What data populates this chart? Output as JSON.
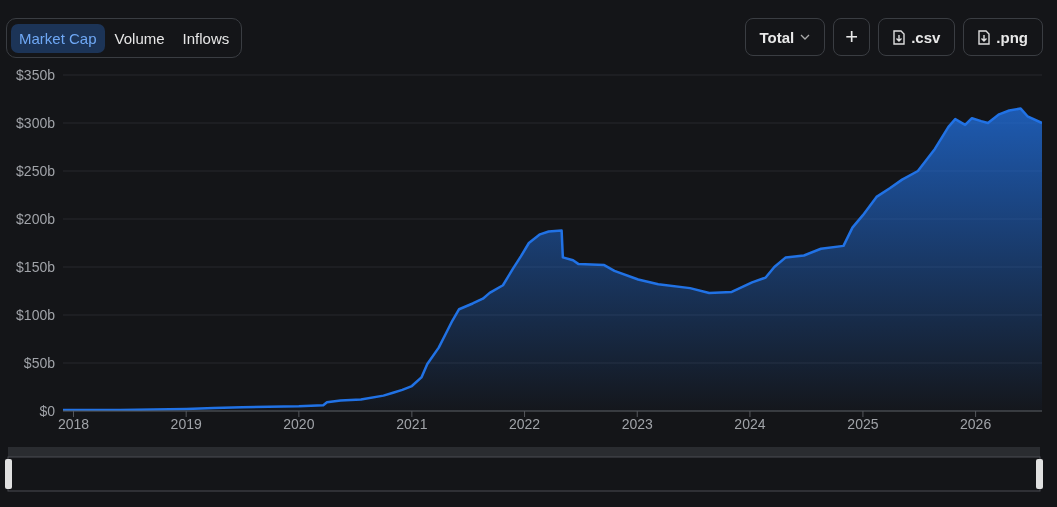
{
  "chart_data": {
    "type": "area",
    "annotations": [
      "Market Cap",
      "Volume",
      "Inflows",
      "Total",
      "+",
      ".csv",
      ".png"
    ],
    "x": [
      "2017-11-28",
      "2018-06-01",
      "2019-01-01",
      "2019-04-01",
      "2019-07-01",
      "2020-01-01",
      "2020-03-20",
      "2020-04-01",
      "2020-05-15",
      "2020-07-20",
      "2020-10-01",
      "2020-11-01",
      "2020-12-01",
      "2021-01-01",
      "2021-02-01",
      "2021-02-20",
      "2021-03-29",
      "2021-04-20",
      "2021-05-12",
      "2021-06-03",
      "2021-07-17",
      "2021-08-19",
      "2021-09-10",
      "2021-10-23",
      "2021-11-24",
      "2021-12-20",
      "2022-01-15",
      "2022-02-20",
      "2022-03-20",
      "2022-05-01",
      "2022-05-05",
      "2022-06-07",
      "2022-06-25",
      "2022-09-16",
      "2022-10-19",
      "2023-01-04",
      "2023-03-10",
      "2023-06-21",
      "2023-08-22",
      "2023-11-03",
      "2024-01-08",
      "2024-02-21",
      "2024-03-20",
      "2024-04-26",
      "2024-06-24",
      "2024-08-18",
      "2024-10-30",
      "2024-11-28",
      "2025-01-01",
      "2025-02-14",
      "2025-03-29",
      "2025-05-08",
      "2025-06-28",
      "2025-08-22",
      "2025-10-05",
      "2025-10-27",
      "2025-11-28",
      "2025-12-20",
      "2026-01-19",
      "2026-02-10",
      "2026-03-18",
      "2026-04-20",
      "2026-05-27",
      "2026-06-18",
      "2026-08-04"
    ],
    "series": [
      {
        "color": "#2172e5",
        "values": [
          1,
          1,
          2,
          3,
          4,
          5,
          6,
          9,
          11,
          12,
          16,
          19,
          22,
          26,
          35,
          49,
          66,
          80,
          94,
          106,
          112,
          117,
          123,
          131,
          148,
          161,
          175,
          184,
          187,
          188,
          160,
          157,
          153,
          152,
          146,
          137,
          132,
          128,
          123,
          124,
          134,
          139,
          150,
          160,
          162,
          169,
          172,
          191,
          204,
          223,
          232,
          241,
          250,
          273,
          296,
          304,
          298,
          305,
          302,
          300,
          309,
          313,
          315,
          307,
          300
        ]
      }
    ],
    "xlim": [
      "2017-11-28",
      "2026-08-04"
    ],
    "xticks": [
      "2018",
      "2019",
      "2020",
      "2021",
      "2022",
      "2023",
      "2024",
      "2025",
      "2026"
    ],
    "ylim": [
      0,
      350
    ],
    "yticks": [
      {
        "value": 0,
        "label": "$0"
      },
      {
        "value": 50,
        "label": "$50b"
      },
      {
        "value": 100,
        "label": "$100b"
      },
      {
        "value": 150,
        "label": "$150b"
      },
      {
        "value": 200,
        "label": "$200b"
      },
      {
        "value": 250,
        "label": "$250b"
      },
      {
        "value": 300,
        "label": "$300b"
      },
      {
        "value": 350,
        "label": "$350b"
      }
    ],
    "grid": "y"
  }
}
